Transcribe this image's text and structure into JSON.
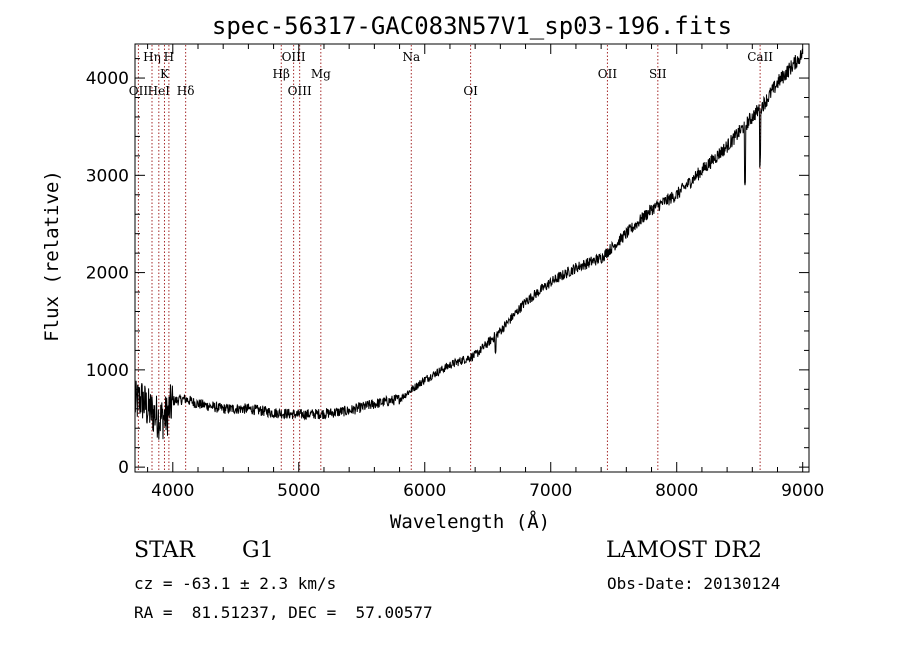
{
  "chart_data": {
    "type": "line",
    "title": "spec-56317-GAC083N57V1_sp03-196.fits",
    "xlabel": "Wavelength (Å)",
    "ylabel": "Flux (relative)",
    "xlim": [
      3700,
      9050
    ],
    "ylim": [
      -50,
      4350
    ],
    "x_ticks": [
      4000,
      5000,
      6000,
      7000,
      8000,
      9000
    ],
    "y_ticks": [
      0,
      1000,
      2000,
      3000,
      4000
    ],
    "grid": false,
    "series": [
      {
        "color": "#000000",
        "x": [
          3700,
          3750,
          3800,
          3850,
          3900,
          3950,
          4000,
          4100,
          4200,
          4400,
          4600,
          4800,
          5000,
          5200,
          5400,
          5600,
          5800,
          5900,
          6000,
          6200,
          6400,
          6600,
          6800,
          7000,
          7200,
          7400,
          7600,
          7800,
          8000,
          8200,
          8400,
          8500,
          8600,
          8700,
          8800,
          8900,
          9000
        ],
        "y": [
          650,
          700,
          600,
          550,
          500,
          520,
          680,
          700,
          650,
          600,
          600,
          560,
          540,
          550,
          580,
          650,
          700,
          800,
          900,
          1050,
          1150,
          1400,
          1700,
          1900,
          2050,
          2150,
          2400,
          2650,
          2800,
          3050,
          3300,
          3450,
          3600,
          3750,
          3950,
          4100,
          4250
        ]
      }
    ],
    "annotations": [
      {
        "x": 4000,
        "y": 1380
      },
      {
        "x": 5700,
        "y": 720
      },
      {
        "x": 6100,
        "y": 980
      }
    ],
    "spectral_lines": [
      {
        "wavelength": 3727,
        "label": "OII",
        "row": 3
      },
      {
        "wavelength": 3835,
        "label": "Hη",
        "row": 1
      },
      {
        "wavelength": 3889,
        "label": "HeI",
        "row": 3
      },
      {
        "wavelength": 3934,
        "label": "K",
        "row": 2
      },
      {
        "wavelength": 3969,
        "label": "H",
        "row": 1
      },
      {
        "wavelength": 4102,
        "label": "Hδ",
        "row": 3
      },
      {
        "wavelength": 4861,
        "label": "Hβ",
        "row": 2
      },
      {
        "wavelength": 4959,
        "label": "OIII",
        "row": 1
      },
      {
        "wavelength": 5007,
        "label": "OIII",
        "row": 3
      },
      {
        "wavelength": 5175,
        "label": "Mg",
        "row": 2
      },
      {
        "wavelength": 5893,
        "label": "Na",
        "row": 1
      },
      {
        "wavelength": 6364,
        "label": "OI",
        "row": 3
      },
      {
        "wavelength": 7450,
        "label": "OII",
        "row": 2
      },
      {
        "wavelength": 7850,
        "label": "SII",
        "row": 2
      },
      {
        "wavelength": 8662,
        "label": "CaII",
        "row": 1
      }
    ],
    "spectral_line_color": "#a52a2a"
  },
  "info": {
    "object_class": "STAR",
    "subclass": "G1",
    "survey": "LAMOST DR2",
    "redshift_line": "cz = -63.1 ± 2.3 km/s",
    "obs_date_line": "Obs-Date: 20130124",
    "coords_line": "RA =  81.51237, DEC =  57.00577"
  }
}
